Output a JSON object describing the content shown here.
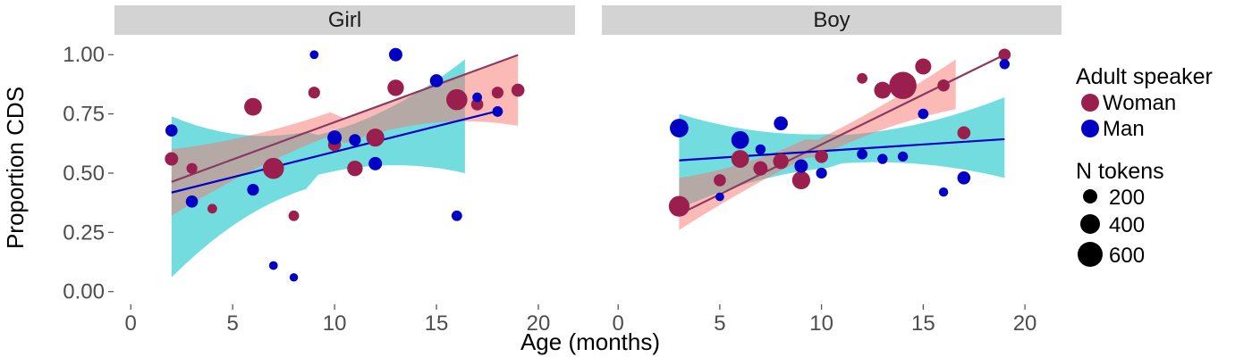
{
  "chart_data": {
    "type": "scatter",
    "xlabel": "Age (months)",
    "ylabel": "Proportion CDS",
    "xlim": [
      -0.8,
      21.8
    ],
    "ylim": [
      -0.05,
      1.08
    ],
    "x_ticks": [
      0,
      5,
      10,
      15,
      20
    ],
    "y_ticks": [
      0.0,
      0.25,
      0.5,
      0.75,
      1.0
    ],
    "y_tick_labels": [
      "0.00",
      "0.25",
      "0.50",
      "0.75",
      "1.00"
    ],
    "grid": false,
    "legend_position": "right",
    "colors": {
      "Woman": "#9b1f4e",
      "Man": "#0000c4",
      "Woman_ribbon": "#f8766d",
      "Man_ribbon": "#00bfc4"
    },
    "legend": {
      "color_title": "Adult speaker",
      "color_entries": [
        "Woman",
        "Man"
      ],
      "size_title": "N tokens",
      "size_entries": [
        {
          "label": "200",
          "value": 200
        },
        {
          "label": "400",
          "value": 400
        },
        {
          "label": "600",
          "value": 600
        }
      ]
    },
    "panels": [
      {
        "title": "Girl",
        "fits": [
          {
            "speaker": "Woman",
            "x_start": 2,
            "x_end": 19,
            "intercept": 0.4,
            "slope": 0.0315,
            "ribbon_x_start": 2,
            "ribbon_x_end": 19,
            "ribbon_lo_start": 0.32,
            "ribbon_hi_start": 0.6,
            "ribbon_lo_end": 0.7,
            "ribbon_hi_end": 1.0
          },
          {
            "speaker": "Man",
            "x_start": 2,
            "x_end": 18,
            "intercept": 0.375,
            "slope": 0.0215,
            "ribbon_x_start": 2,
            "ribbon_x_end": 16.4,
            "ribbon_lo_start": 0.06,
            "ribbon_hi_start": 0.74,
            "ribbon_lo_end": 0.5,
            "ribbon_hi_end": 0.98
          }
        ],
        "points": [
          {
            "speaker": "Woman",
            "x": 2,
            "y": 0.56,
            "n": 150
          },
          {
            "speaker": "Woman",
            "x": 3,
            "y": 0.52,
            "n": 90
          },
          {
            "speaker": "Woman",
            "x": 4,
            "y": 0.35,
            "n": 60
          },
          {
            "speaker": "Woman",
            "x": 6,
            "y": 0.78,
            "n": 250
          },
          {
            "speaker": "Woman",
            "x": 7,
            "y": 0.52,
            "n": 330
          },
          {
            "speaker": "Woman",
            "x": 8,
            "y": 0.32,
            "n": 80
          },
          {
            "speaker": "Woman",
            "x": 9,
            "y": 0.84,
            "n": 110
          },
          {
            "speaker": "Woman",
            "x": 10,
            "y": 0.62,
            "n": 140
          },
          {
            "speaker": "Woman",
            "x": 11,
            "y": 0.52,
            "n": 200
          },
          {
            "speaker": "Woman",
            "x": 12,
            "y": 0.65,
            "n": 260
          },
          {
            "speaker": "Woman",
            "x": 13,
            "y": 0.86,
            "n": 220
          },
          {
            "speaker": "Woman",
            "x": 16,
            "y": 0.81,
            "n": 330
          },
          {
            "speaker": "Woman",
            "x": 17,
            "y": 0.79,
            "n": 120
          },
          {
            "speaker": "Woman",
            "x": 18,
            "y": 0.84,
            "n": 110
          },
          {
            "speaker": "Woman",
            "x": 19,
            "y": 0.85,
            "n": 140
          },
          {
            "speaker": "Man",
            "x": 2,
            "y": 0.68,
            "n": 120
          },
          {
            "speaker": "Man",
            "x": 3,
            "y": 0.38,
            "n": 120
          },
          {
            "speaker": "Man",
            "x": 6,
            "y": 0.43,
            "n": 110
          },
          {
            "speaker": "Man",
            "x": 7,
            "y": 0.11,
            "n": 40
          },
          {
            "speaker": "Man",
            "x": 8,
            "y": 0.06,
            "n": 30
          },
          {
            "speaker": "Man",
            "x": 9,
            "y": 1.0,
            "n": 40
          },
          {
            "speaker": "Man",
            "x": 10,
            "y": 0.65,
            "n": 170
          },
          {
            "speaker": "Man",
            "x": 11,
            "y": 0.64,
            "n": 110
          },
          {
            "speaker": "Man",
            "x": 12,
            "y": 0.54,
            "n": 150
          },
          {
            "speaker": "Man",
            "x": 13,
            "y": 1.0,
            "n": 150
          },
          {
            "speaker": "Man",
            "x": 15,
            "y": 0.89,
            "n": 140
          },
          {
            "speaker": "Man",
            "x": 16,
            "y": 0.32,
            "n": 80
          },
          {
            "speaker": "Man",
            "x": 17,
            "y": 0.82,
            "n": 60
          },
          {
            "speaker": "Man",
            "x": 18,
            "y": 0.76,
            "n": 80
          }
        ]
      },
      {
        "title": "Boy",
        "fits": [
          {
            "speaker": "Woman",
            "x_start": 3,
            "x_end": 19,
            "intercept": 0.2,
            "slope": 0.0421,
            "ribbon_x_start": 3,
            "ribbon_x_end": 16.6,
            "ribbon_lo_start": 0.26,
            "ribbon_hi_start": 0.48,
            "ribbon_lo_end": 0.77,
            "ribbon_hi_end": 0.98
          },
          {
            "speaker": "Man",
            "x_start": 3,
            "x_end": 19,
            "intercept": 0.537,
            "slope": 0.0056,
            "ribbon_x_start": 3,
            "ribbon_x_end": 19,
            "ribbon_lo_start": 0.35,
            "ribbon_hi_start": 0.75,
            "ribbon_lo_end": 0.48,
            "ribbon_hi_end": 0.82
          }
        ],
        "points": [
          {
            "speaker": "Woman",
            "x": 3,
            "y": 0.36,
            "n": 320
          },
          {
            "speaker": "Woman",
            "x": 5,
            "y": 0.47,
            "n": 120
          },
          {
            "speaker": "Woman",
            "x": 6,
            "y": 0.56,
            "n": 250
          },
          {
            "speaker": "Woman",
            "x": 7,
            "y": 0.52,
            "n": 170
          },
          {
            "speaker": "Woman",
            "x": 8,
            "y": 0.55,
            "n": 200
          },
          {
            "speaker": "Woman",
            "x": 9,
            "y": 0.47,
            "n": 260
          },
          {
            "speaker": "Woman",
            "x": 10,
            "y": 0.57,
            "n": 140
          },
          {
            "speaker": "Woman",
            "x": 12,
            "y": 0.9,
            "n": 80
          },
          {
            "speaker": "Woman",
            "x": 13,
            "y": 0.85,
            "n": 230
          },
          {
            "speaker": "Woman",
            "x": 14,
            "y": 0.87,
            "n": 480
          },
          {
            "speaker": "Woman",
            "x": 15,
            "y": 0.95,
            "n": 210
          },
          {
            "speaker": "Woman",
            "x": 16,
            "y": 0.87,
            "n": 120
          },
          {
            "speaker": "Woman",
            "x": 17,
            "y": 0.67,
            "n": 140
          },
          {
            "speaker": "Woman",
            "x": 19,
            "y": 1.0,
            "n": 120
          },
          {
            "speaker": "Man",
            "x": 3,
            "y": 0.69,
            "n": 270
          },
          {
            "speaker": "Man",
            "x": 5,
            "y": 0.4,
            "n": 40
          },
          {
            "speaker": "Man",
            "x": 6,
            "y": 0.64,
            "n": 250
          },
          {
            "speaker": "Man",
            "x": 7,
            "y": 0.6,
            "n": 70
          },
          {
            "speaker": "Man",
            "x": 8,
            "y": 0.71,
            "n": 160
          },
          {
            "speaker": "Man",
            "x": 9,
            "y": 0.53,
            "n": 150
          },
          {
            "speaker": "Man",
            "x": 10,
            "y": 0.5,
            "n": 90
          },
          {
            "speaker": "Man",
            "x": 12,
            "y": 0.58,
            "n": 80
          },
          {
            "speaker": "Man",
            "x": 13,
            "y": 0.56,
            "n": 70
          },
          {
            "speaker": "Man",
            "x": 14,
            "y": 0.57,
            "n": 70
          },
          {
            "speaker": "Man",
            "x": 15,
            "y": 0.75,
            "n": 80
          },
          {
            "speaker": "Man",
            "x": 16,
            "y": 0.42,
            "n": 50
          },
          {
            "speaker": "Man",
            "x": 17,
            "y": 0.48,
            "n": 140
          },
          {
            "speaker": "Man",
            "x": 19,
            "y": 0.96,
            "n": 70
          }
        ]
      }
    ]
  }
}
